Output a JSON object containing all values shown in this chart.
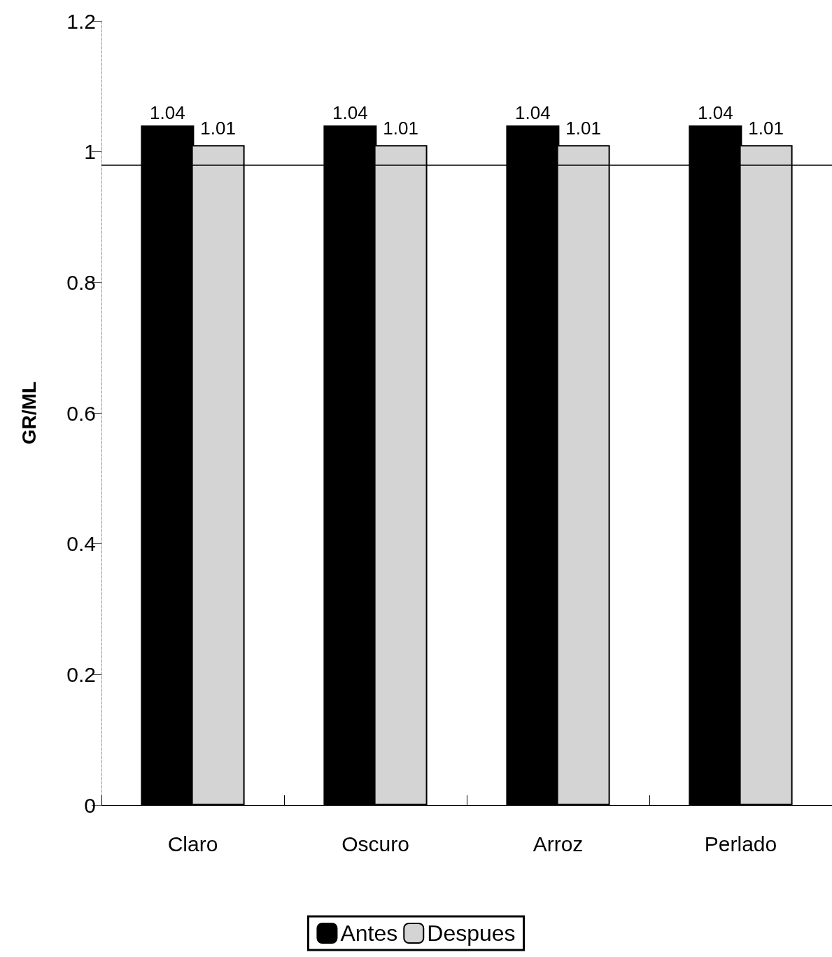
{
  "chart_data": {
    "type": "bar",
    "ylabel": "GR/ML",
    "categories": [
      "Claro",
      "Oscuro",
      "Arroz",
      "Perlado"
    ],
    "series": [
      {
        "name": "Antes",
        "color": "#000000",
        "values": [
          1.04,
          1.04,
          1.04,
          1.04
        ]
      },
      {
        "name": "Despues",
        "color": "#d4d4d4",
        "values": [
          1.01,
          1.01,
          1.01,
          1.01
        ]
      }
    ],
    "ylim": [
      0,
      1.2
    ],
    "yticks": [
      0,
      0.2,
      0.4,
      0.6,
      0.8,
      1,
      1.2
    ],
    "grid": false,
    "legend": "bottom",
    "data_labels": true,
    "ref_lines": [
      {
        "axis": "y",
        "value": 0.98,
        "color": "#000000"
      }
    ]
  }
}
